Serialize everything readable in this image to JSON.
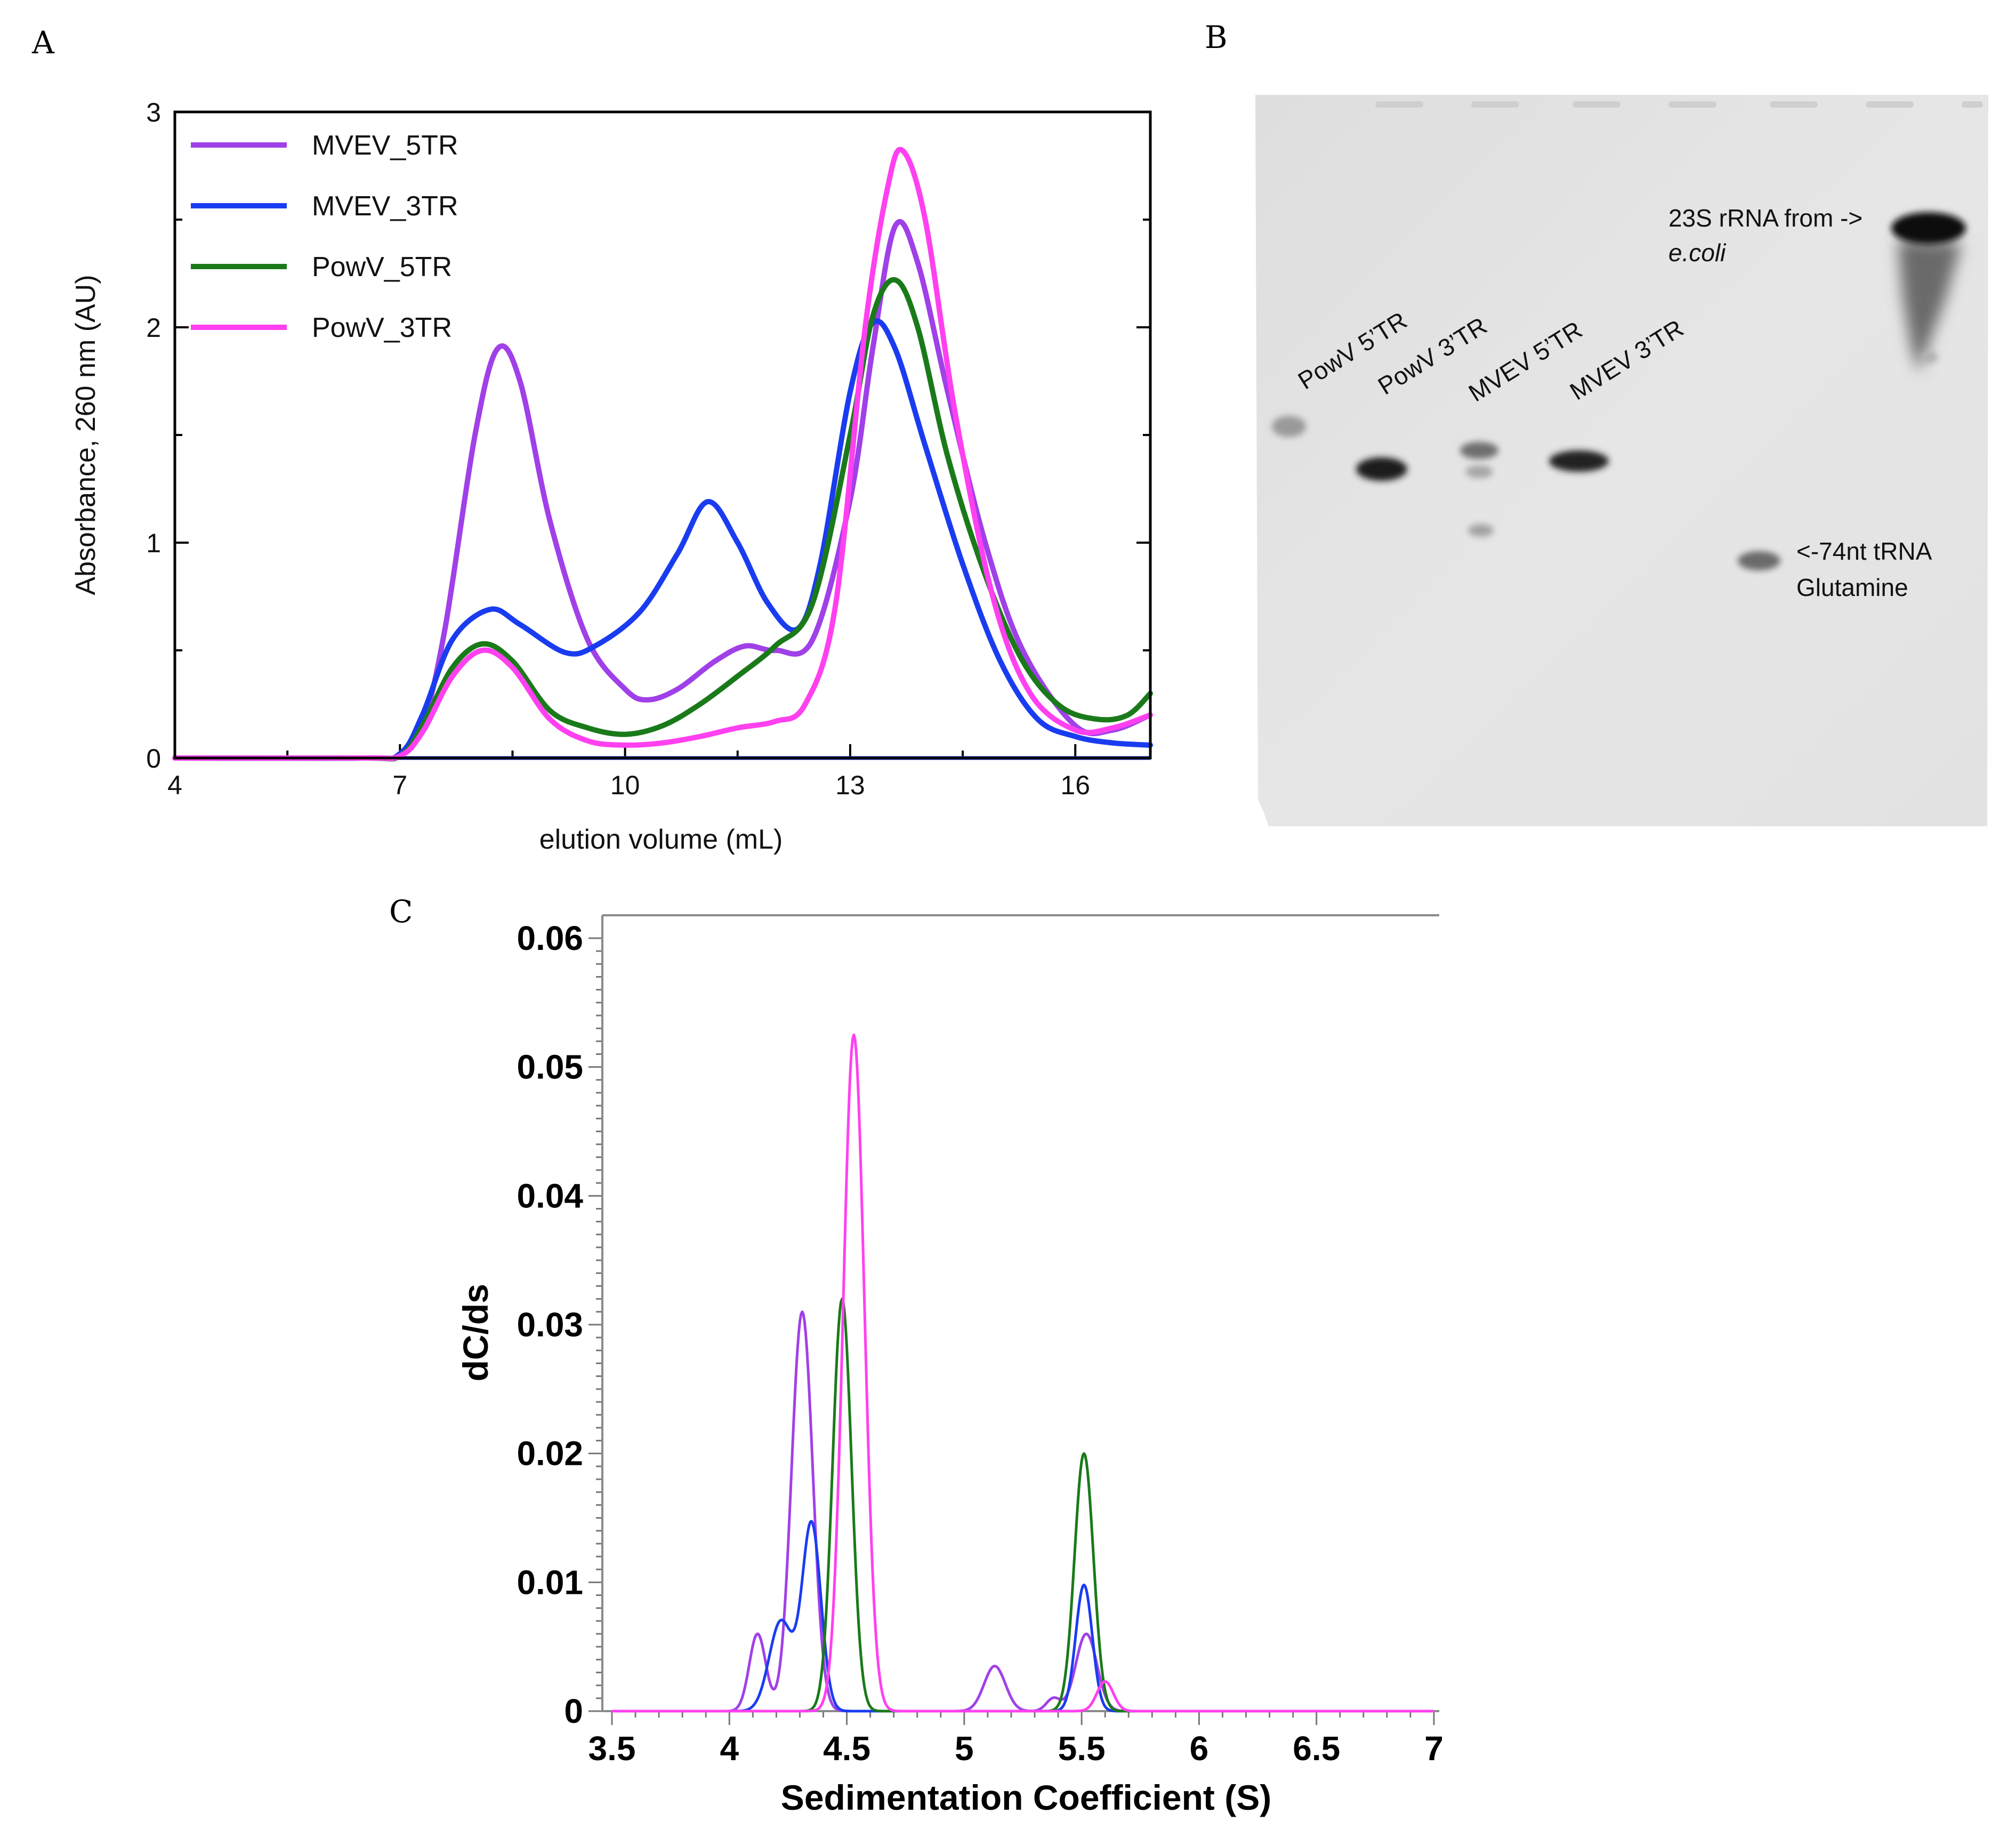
{
  "panels": {
    "a_letter": "A",
    "b_letter": "B",
    "c_letter": "C"
  },
  "gel": {
    "lanes": [
      "PowV 5’TR",
      "PowV 3’TR",
      "MVEV 5’TR",
      "MVEV 3’TR"
    ],
    "marker_23s_line1": "23S rRNA from ->",
    "marker_23s_line2": "e.coli",
    "marker_trna_line1": "<-74nt tRNA",
    "marker_trna_line2": "Glutamine"
  },
  "chart_data": [
    {
      "type": "line",
      "title": "",
      "xlabel": "elution volume (mL)",
      "ylabel": "Absorbance, 260 nm (AU)",
      "xlim": [
        4,
        17
      ],
      "ylim": [
        0,
        3
      ],
      "xticks": [
        "4",
        "7",
        "10",
        "13",
        "16"
      ],
      "yticks": [
        "0",
        "1",
        "2",
        "3"
      ],
      "legend_position": "top-left",
      "series": [
        {
          "name": "MVEV_5TR",
          "color": "#a040e8",
          "points": [
            [
              4,
              0
            ],
            [
              6.5,
              0
            ],
            [
              7,
              0.01
            ],
            [
              7.3,
              0.15
            ],
            [
              7.6,
              0.6
            ],
            [
              8,
              1.5
            ],
            [
              8.3,
              1.9
            ],
            [
              8.6,
              1.75
            ],
            [
              9,
              1.1
            ],
            [
              9.5,
              0.55
            ],
            [
              10,
              0.32
            ],
            [
              10.3,
              0.27
            ],
            [
              10.7,
              0.32
            ],
            [
              11.2,
              0.45
            ],
            [
              11.6,
              0.52
            ],
            [
              12,
              0.5
            ],
            [
              12.5,
              0.55
            ],
            [
              13,
              1.2
            ],
            [
              13.3,
              1.9
            ],
            [
              13.6,
              2.47
            ],
            [
              13.9,
              2.3
            ],
            [
              14.3,
              1.7
            ],
            [
              14.8,
              1.0
            ],
            [
              15.3,
              0.5
            ],
            [
              16,
              0.15
            ],
            [
              16.5,
              0.13
            ],
            [
              17,
              0.2
            ]
          ]
        },
        {
          "name": "MVEV_3TR",
          "color": "#1a3cf0",
          "points": [
            [
              4,
              0
            ],
            [
              6.5,
              0
            ],
            [
              7,
              0.02
            ],
            [
              7.3,
              0.2
            ],
            [
              7.7,
              0.55
            ],
            [
              8.2,
              0.69
            ],
            [
              8.6,
              0.62
            ],
            [
              9.2,
              0.49
            ],
            [
              9.6,
              0.52
            ],
            [
              10.2,
              0.68
            ],
            [
              10.7,
              0.95
            ],
            [
              11.1,
              1.19
            ],
            [
              11.5,
              1.0
            ],
            [
              11.9,
              0.72
            ],
            [
              12.3,
              0.6
            ],
            [
              12.6,
              0.9
            ],
            [
              13,
              1.7
            ],
            [
              13.3,
              2.02
            ],
            [
              13.6,
              1.9
            ],
            [
              14,
              1.45
            ],
            [
              14.5,
              0.9
            ],
            [
              15,
              0.45
            ],
            [
              15.5,
              0.18
            ],
            [
              16,
              0.1
            ],
            [
              16.5,
              0.07
            ],
            [
              17,
              0.06
            ]
          ]
        },
        {
          "name": "PowV_5TR",
          "color": "#1a7a1a",
          "points": [
            [
              4,
              0
            ],
            [
              6.5,
              0
            ],
            [
              7,
              0.01
            ],
            [
              7.3,
              0.15
            ],
            [
              7.7,
              0.42
            ],
            [
              8.1,
              0.53
            ],
            [
              8.5,
              0.45
            ],
            [
              9,
              0.22
            ],
            [
              9.5,
              0.14
            ],
            [
              10,
              0.11
            ],
            [
              10.5,
              0.15
            ],
            [
              11,
              0.25
            ],
            [
              11.5,
              0.38
            ],
            [
              12,
              0.52
            ],
            [
              12.5,
              0.72
            ],
            [
              13,
              1.5
            ],
            [
              13.3,
              2.05
            ],
            [
              13.6,
              2.22
            ],
            [
              13.9,
              2.0
            ],
            [
              14.3,
              1.4
            ],
            [
              14.8,
              0.85
            ],
            [
              15.3,
              0.45
            ],
            [
              15.8,
              0.24
            ],
            [
              16.3,
              0.18
            ],
            [
              16.7,
              0.2
            ],
            [
              17,
              0.3
            ]
          ]
        },
        {
          "name": "PowV_3TR",
          "color": "#ff40f0",
          "points": [
            [
              4,
              0
            ],
            [
              6.5,
              0
            ],
            [
              7,
              0.01
            ],
            [
              7.3,
              0.12
            ],
            [
              7.7,
              0.38
            ],
            [
              8.1,
              0.5
            ],
            [
              8.5,
              0.42
            ],
            [
              9,
              0.18
            ],
            [
              9.5,
              0.08
            ],
            [
              10,
              0.06
            ],
            [
              10.5,
              0.07
            ],
            [
              11,
              0.1
            ],
            [
              11.5,
              0.14
            ],
            [
              12,
              0.17
            ],
            [
              12.4,
              0.25
            ],
            [
              12.8,
              0.7
            ],
            [
              13.2,
              2.0
            ],
            [
              13.5,
              2.65
            ],
            [
              13.7,
              2.82
            ],
            [
              14,
              2.5
            ],
            [
              14.4,
              1.6
            ],
            [
              14.9,
              0.75
            ],
            [
              15.4,
              0.3
            ],
            [
              16,
              0.13
            ],
            [
              16.5,
              0.14
            ],
            [
              17,
              0.2
            ]
          ]
        }
      ]
    },
    {
      "type": "line",
      "title": "",
      "xlabel": "Sedimentation Coefficient (S)",
      "ylabel": "dC/ds",
      "xlim": [
        3.5,
        7
      ],
      "ylim": [
        0,
        0.06
      ],
      "xticks": [
        "3.5",
        "4",
        "4.5",
        "5",
        "5.5",
        "6",
        "6.5",
        "7"
      ],
      "yticks": [
        "0",
        "0.01",
        "0.02",
        "0.03",
        "0.04",
        "0.05",
        "0.06"
      ],
      "series": [
        {
          "name": "MVEV_5TR",
          "color": "#a040e8",
          "peaks": [
            [
              4.12,
              0.006,
              0.035
            ],
            [
              4.31,
              0.031,
              0.045
            ],
            [
              5.13,
              0.0035,
              0.045
            ],
            [
              5.38,
              0.001,
              0.03
            ],
            [
              5.52,
              0.006,
              0.045
            ]
          ]
        },
        {
          "name": "MVEV_3TR",
          "color": "#1a3cf0",
          "peaks": [
            [
              4.22,
              0.007,
              0.05
            ],
            [
              4.35,
              0.0145,
              0.04
            ],
            [
              5.51,
              0.0098,
              0.035
            ]
          ]
        },
        {
          "name": "PowV_5TR",
          "color": "#1a7a1a",
          "peaks": [
            [
              4.48,
              0.032,
              0.04
            ],
            [
              5.51,
              0.02,
              0.04
            ]
          ]
        },
        {
          "name": "PowV_3TR",
          "color": "#ff40f0",
          "peaks": [
            [
              4.53,
              0.0525,
              0.045
            ],
            [
              5.6,
              0.0023,
              0.035
            ]
          ]
        }
      ]
    }
  ]
}
